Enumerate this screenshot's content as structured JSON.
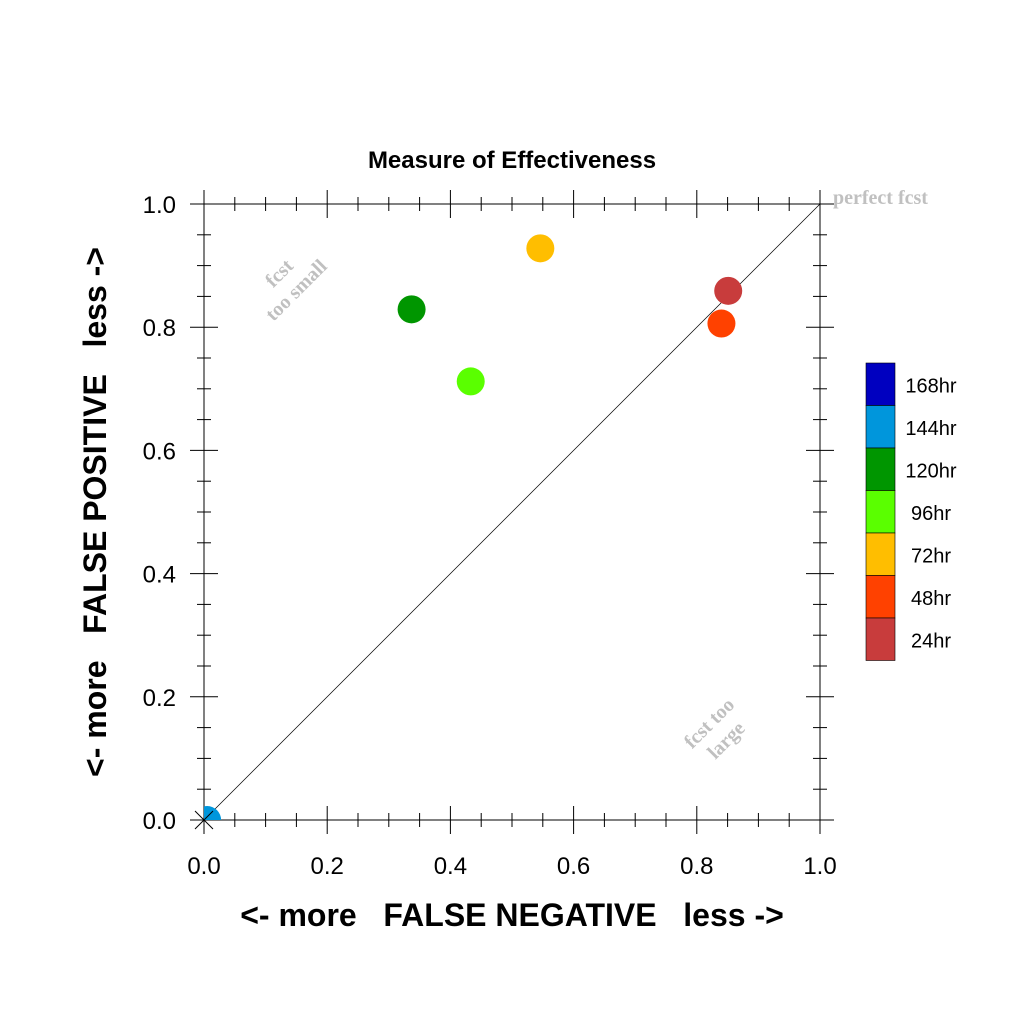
{
  "chart_data": {
    "type": "scatter",
    "title": "Measure of Effectiveness",
    "xlabel": "<- more   FALSE NEGATIVE   less ->",
    "ylabel": "<- more   FALSE POSITIVE   less ->",
    "xlim": [
      0.0,
      1.0
    ],
    "ylim": [
      0.0,
      1.0
    ],
    "x_ticks": [
      "0.0",
      "0.2",
      "0.4",
      "0.6",
      "0.8",
      "1.0"
    ],
    "y_ticks": [
      "0.0",
      "0.2",
      "0.4",
      "0.6",
      "0.8",
      "1.0"
    ],
    "grid": false,
    "reference_line": {
      "from": [
        0,
        0
      ],
      "to": [
        1,
        1
      ]
    },
    "annotations": {
      "perfect": "perfect fcst",
      "too_small_line1": "fcst",
      "too_small_line2": "too small",
      "too_large_line1": "fcst too",
      "too_large_line2": "large"
    },
    "legend": {
      "placement": "right",
      "entries": [
        {
          "label": "168hr",
          "color": "#0000c0"
        },
        {
          "label": "144hr",
          "color": "#0096dc"
        },
        {
          "label": "120hr",
          "color": "#009600"
        },
        {
          "label": "96hr",
          "color": "#5aff00"
        },
        {
          "label": "72hr",
          "color": "#ffbe00"
        },
        {
          "label": "48hr",
          "color": "#ff4100"
        },
        {
          "label": "24hr",
          "color": "#c83c3c"
        }
      ]
    },
    "points": [
      {
        "series": "144hr",
        "x": 0.005,
        "y": 0.0,
        "color": "#0096dc"
      },
      {
        "series": "120hr",
        "x": 0.337,
        "y": 0.829,
        "color": "#009600"
      },
      {
        "series": "96hr",
        "x": 0.433,
        "y": 0.712,
        "color": "#5aff00"
      },
      {
        "series": "72hr",
        "x": 0.546,
        "y": 0.928,
        "color": "#ffbe00"
      },
      {
        "series": "48hr",
        "x": 0.84,
        "y": 0.806,
        "color": "#ff4100"
      },
      {
        "series": "24hr",
        "x": 0.851,
        "y": 0.859,
        "color": "#c83c3c"
      }
    ]
  }
}
